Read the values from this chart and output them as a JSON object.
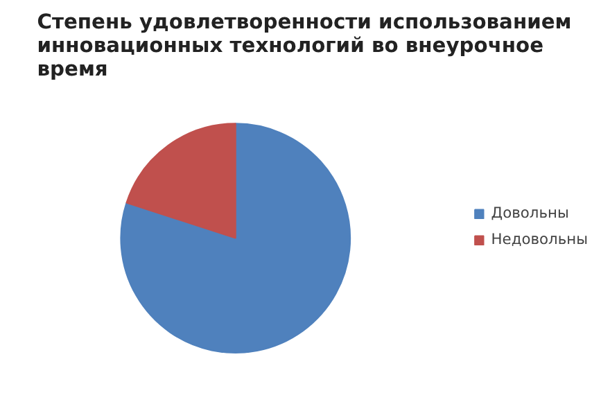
{
  "chart_data": {
    "type": "pie",
    "title": "Степень удовлетворенности использованием инновационных технологий во внеурочное время",
    "categories": [
      "Довольны",
      "Недовольны"
    ],
    "values": [
      80,
      20
    ],
    "colors": [
      "#4f81bd",
      "#c0504d"
    ],
    "legend": "right"
  }
}
